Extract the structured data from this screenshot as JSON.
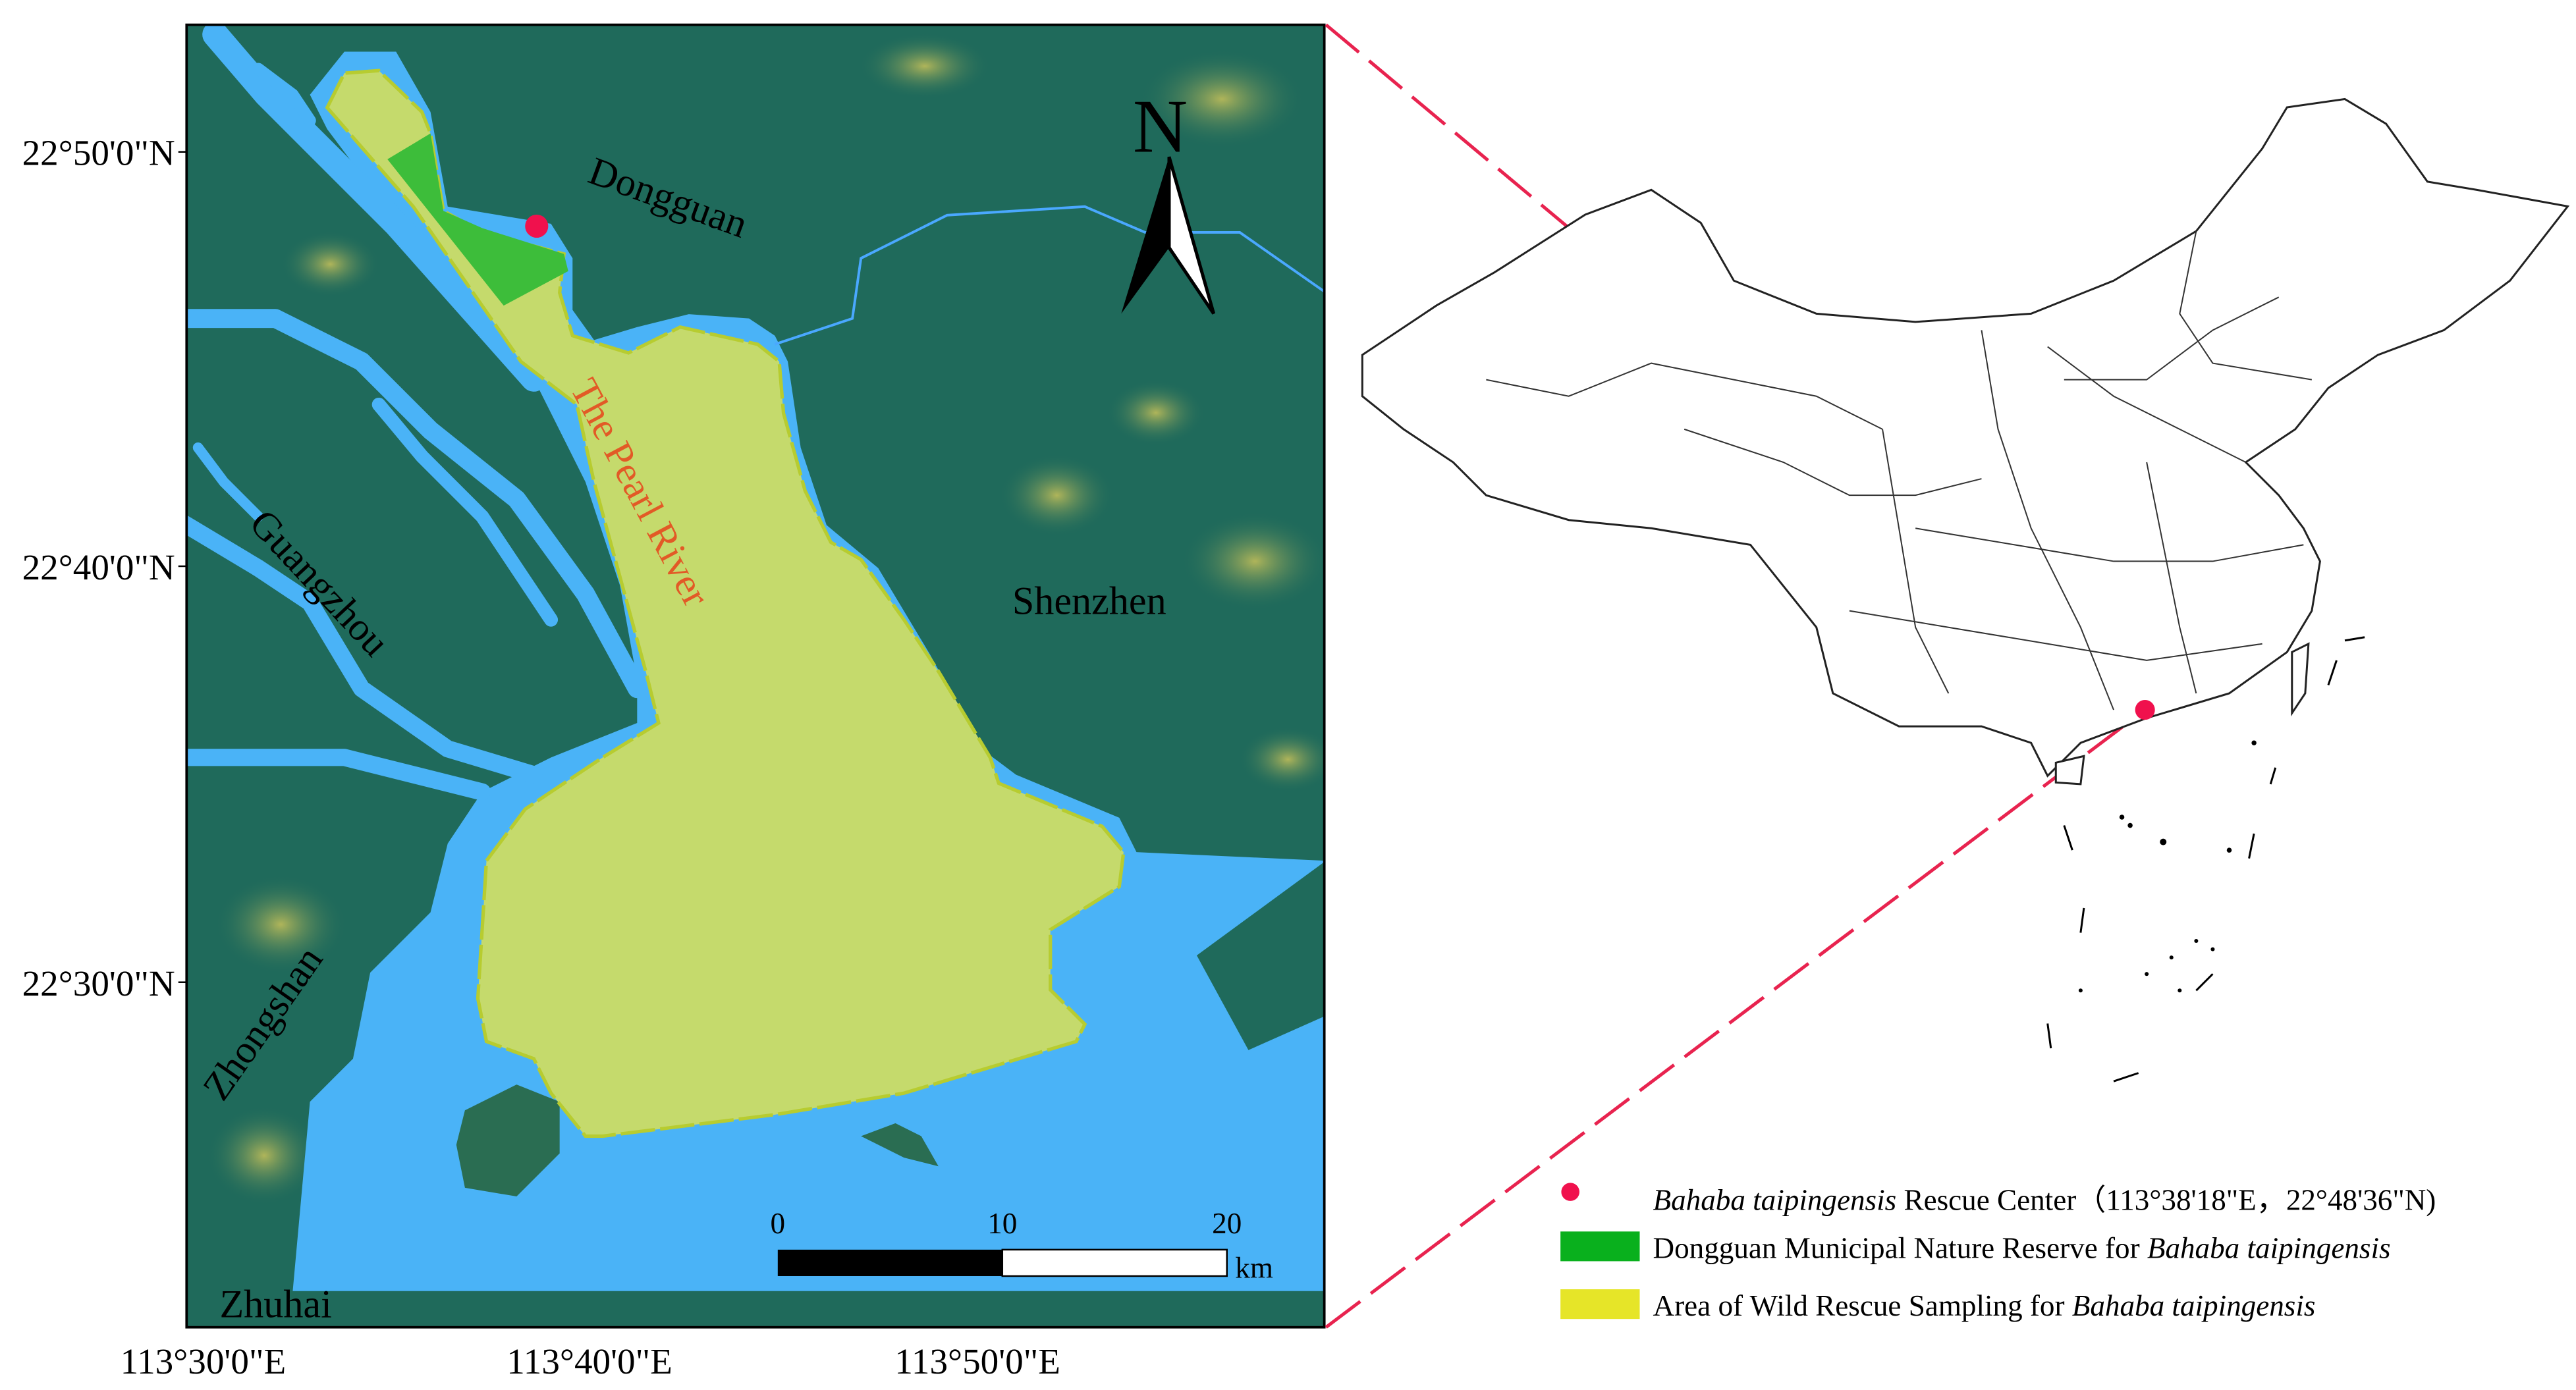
{
  "map": {
    "lat_labels": [
      "22°50'0\"N",
      "22°40'0\"N",
      "22°30'0\"N"
    ],
    "lon_labels": [
      "113°30'0\"E",
      "113°40'0\"E",
      "113°50'0\"E"
    ],
    "place_labels": {
      "dongguan": "Dongguan",
      "guangzhou": "Guangzhou",
      "zhongshan": "Zhongshan",
      "zhuhai": "Zhuhai",
      "shenzhen": "Shenzhen",
      "river": "The Pearl River"
    },
    "north_label": "N",
    "scale_bar": {
      "ticks": [
        "0",
        "10",
        "20"
      ],
      "unit": "km"
    },
    "colors": {
      "land": "#1f6a5b",
      "water": "#4ab3f7",
      "sampling_area": "#c5da6c",
      "reserve": "#3dbd3a",
      "rescue_center": "#f0114d",
      "river_label": "#e25a26"
    }
  },
  "legend": {
    "items": [
      {
        "symbol": "dot",
        "color": "#f0114d",
        "italic": "Bahaba taipingensis",
        "text": " Rescue Center（113°38'18\"E，22°48'36\"N)"
      },
      {
        "symbol": "rect",
        "color": "#09b01d",
        "text": "Dongguan Municipal Nature Reserve for ",
        "italic": "Bahaba taipingensis"
      },
      {
        "symbol": "rect",
        "color": "#e6e528",
        "text": "Area of Wild Rescue Sampling for ",
        "italic": "Bahaba taipingensis"
      }
    ]
  }
}
